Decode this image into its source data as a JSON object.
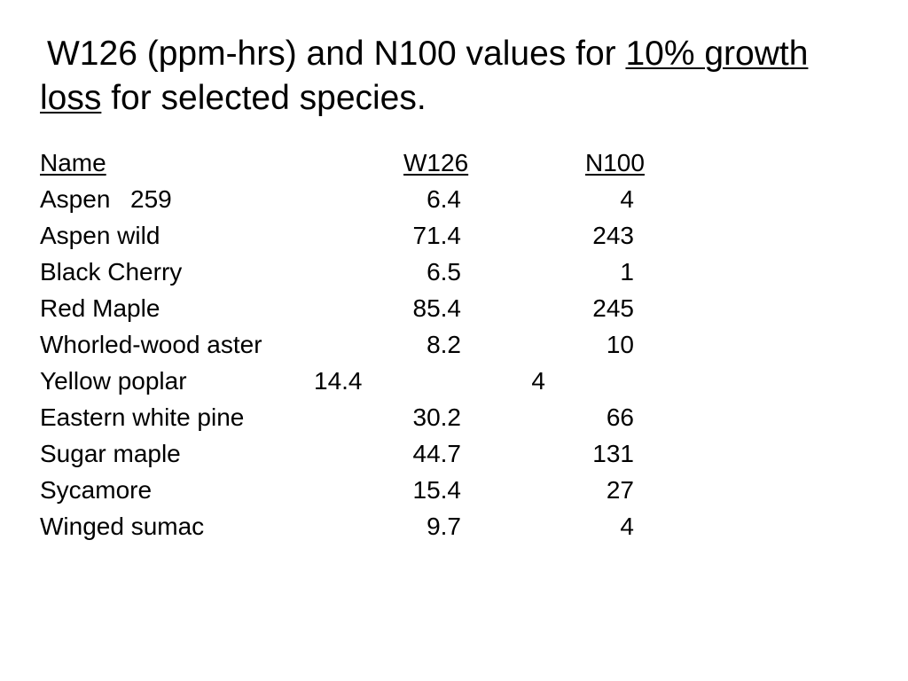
{
  "slide": {
    "title": {
      "part1": "W126 (ppm-hrs) and N100 values for ",
      "underlined": "10% growth loss",
      "part2": " for selected species."
    },
    "table": {
      "headers": {
        "name": "Name",
        "w126": "W126",
        "n100": "N100"
      },
      "rows": [
        {
          "name": "Aspen",
          "inline": "259",
          "w126": "6.4",
          "n100": "4"
        },
        {
          "name": "Aspen wild",
          "w126": "71.4",
          "n100": "243"
        },
        {
          "name": "Black Cherry",
          "w126": "6.5",
          "n100": "1"
        },
        {
          "name": "Red Maple",
          "w126": "85.4",
          "n100": "245"
        },
        {
          "name": "Whorled-wood aster",
          "w126": "8.2",
          "n100": "10"
        },
        {
          "name": "Yellow poplar",
          "w126": "14.4",
          "n100": "4"
        },
        {
          "name": "Eastern white pine",
          "w126": "30.2",
          "n100": "66"
        },
        {
          "name": "Sugar maple",
          "w126": "44.7",
          "n100": "131"
        },
        {
          "name": "Sycamore",
          "w126": "15.4",
          "n100": "27"
        },
        {
          "name": "Winged sumac",
          "w126": "9.7",
          "n100": "4"
        }
      ]
    }
  }
}
